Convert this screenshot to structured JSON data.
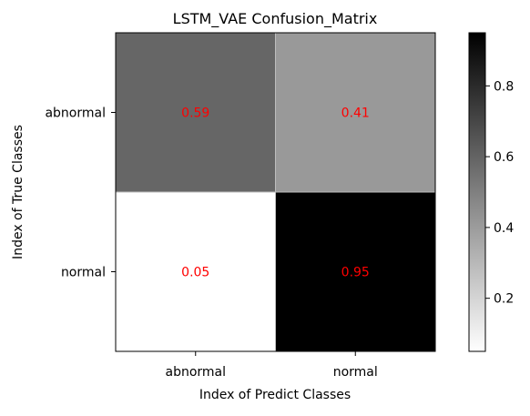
{
  "chart_data": {
    "type": "heatmap",
    "title": "LSTM_VAE Confusion_Matrix",
    "xlabel": "Index of Predict Classes",
    "ylabel": "Index of True Classes",
    "x_categories": [
      "abnormal",
      "normal"
    ],
    "y_categories": [
      "abnormal",
      "normal"
    ],
    "values": [
      [
        0.59,
        0.41
      ],
      [
        0.05,
        0.95
      ]
    ],
    "value_labels": [
      [
        "0.59",
        "0.41"
      ],
      [
        "0.05",
        "0.95"
      ]
    ],
    "colormap": "Greys (white = low, black = high)",
    "colorbar": {
      "range": [
        0.05,
        0.95
      ],
      "ticks": [
        0.2,
        0.4,
        0.6,
        0.8
      ],
      "tick_labels": [
        "0.2",
        "0.4",
        "0.6",
        "0.8"
      ]
    },
    "cell_text_color": "#ff0000",
    "grid": false
  }
}
